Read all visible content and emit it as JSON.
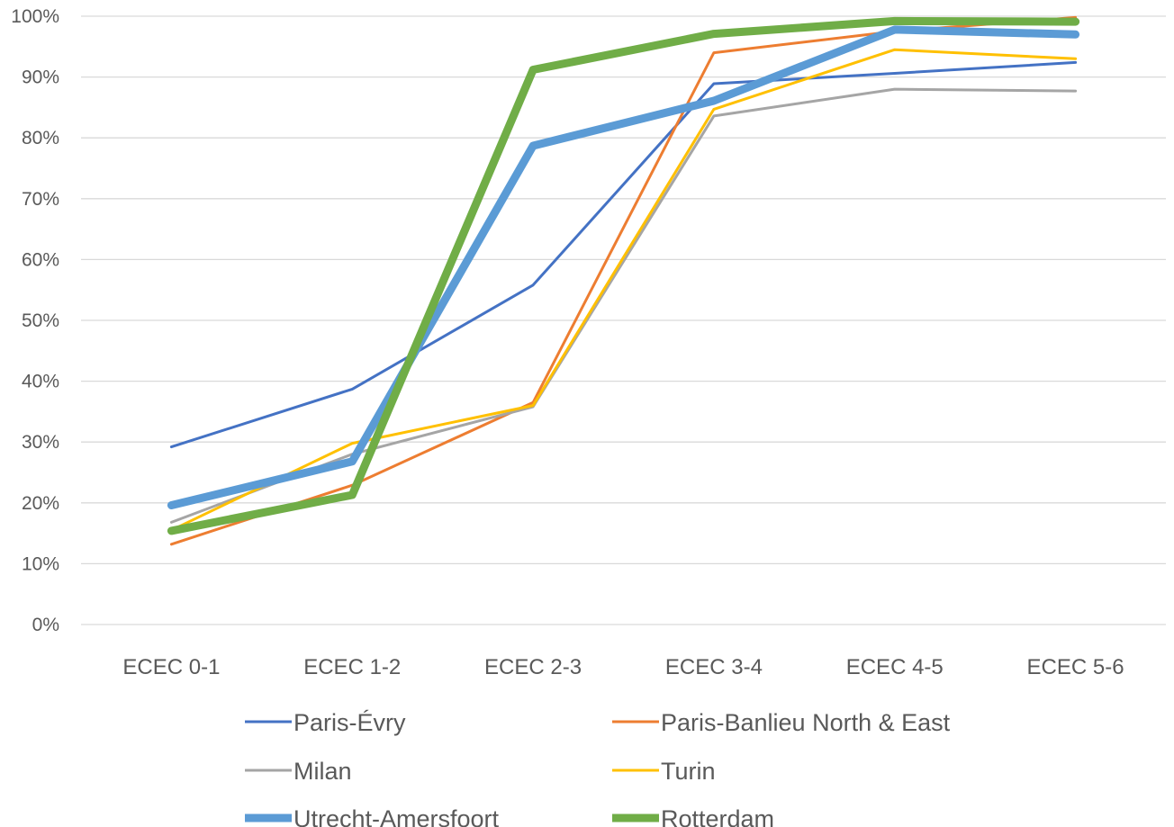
{
  "chart_data": {
    "type": "line",
    "title": "",
    "xlabel": "",
    "ylabel": "",
    "categories": [
      "ECEC 0-1",
      "ECEC 1-2",
      "ECEC 2-3",
      "ECEC 3-4",
      "ECEC 4-5",
      "ECEC 5-6"
    ],
    "ylim": [
      0,
      100
    ],
    "yticks": [
      0,
      10,
      20,
      30,
      40,
      50,
      60,
      70,
      80,
      90,
      100
    ],
    "ytick_labels": [
      "0%",
      "10%",
      "20%",
      "30%",
      "40%",
      "50%",
      "60%",
      "70%",
      "80%",
      "90%",
      "100%"
    ],
    "grid": true,
    "legend_position": "bottom",
    "series": [
      {
        "name": "Paris-Évry",
        "color": "#4472c4",
        "weight": "thin",
        "values": [
          29.2,
          38.7,
          55.8,
          88.9,
          90.6,
          92.4
        ]
      },
      {
        "name": "Paris-Banlieu North & East",
        "color": "#ed7d31",
        "weight": "thin",
        "values": [
          13.2,
          22.9,
          36.5,
          94.0,
          97.5,
          99.8
        ]
      },
      {
        "name": "Milan",
        "color": "#a5a5a5",
        "weight": "thin",
        "values": [
          16.8,
          28.0,
          35.8,
          83.6,
          88.0,
          87.7
        ]
      },
      {
        "name": "Turin",
        "color": "#ffc000",
        "weight": "thin",
        "values": [
          15.5,
          29.8,
          36.0,
          84.7,
          94.5,
          93.0
        ]
      },
      {
        "name": "Utrecht-Amersfoort",
        "color": "#5b9bd5",
        "weight": "thick",
        "values": [
          19.6,
          26.8,
          78.7,
          86.1,
          97.8,
          97.0
        ]
      },
      {
        "name": "Rotterdam",
        "color": "#70ad47",
        "weight": "thick",
        "values": [
          15.4,
          21.3,
          91.2,
          97.1,
          99.2,
          99.1
        ]
      }
    ]
  }
}
